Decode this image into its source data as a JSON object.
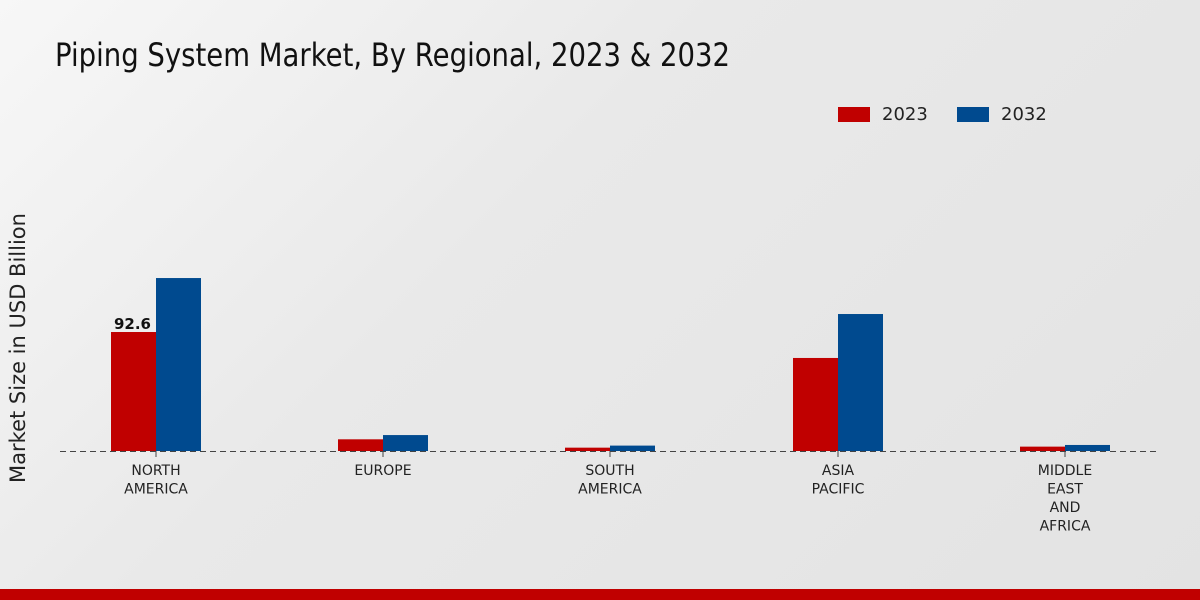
{
  "chart_data": {
    "type": "bar",
    "title": "Piping System Market, By Regional, 2023 & 2032",
    "ylabel": "Market Size in USD Billion",
    "xlabel": "",
    "categories": [
      "NORTH AMERICA",
      "EUROPE",
      "SOUTH AMERICA",
      "ASIA PACIFIC",
      "MIDDLE EAST AND AFRICA"
    ],
    "category_lines": [
      [
        "NORTH",
        "AMERICA"
      ],
      [
        "EUROPE"
      ],
      [
        "SOUTH",
        "AMERICA"
      ],
      [
        "ASIA",
        "PACIFIC"
      ],
      [
        "MIDDLE",
        "EAST",
        "AND",
        "AFRICA"
      ]
    ],
    "series": [
      {
        "name": "2023",
        "color": "#c00000",
        "values": [
          92.6,
          9.1,
          2.6,
          72.4,
          3.4
        ]
      },
      {
        "name": "2032",
        "color": "#004a8f",
        "values": [
          134.6,
          12.4,
          4.2,
          106.6,
          4.7
        ]
      }
    ],
    "data_labels": [
      {
        "series": 0,
        "index": 0,
        "text": "92.6"
      }
    ],
    "grid": false,
    "legend_position": "top-right"
  }
}
